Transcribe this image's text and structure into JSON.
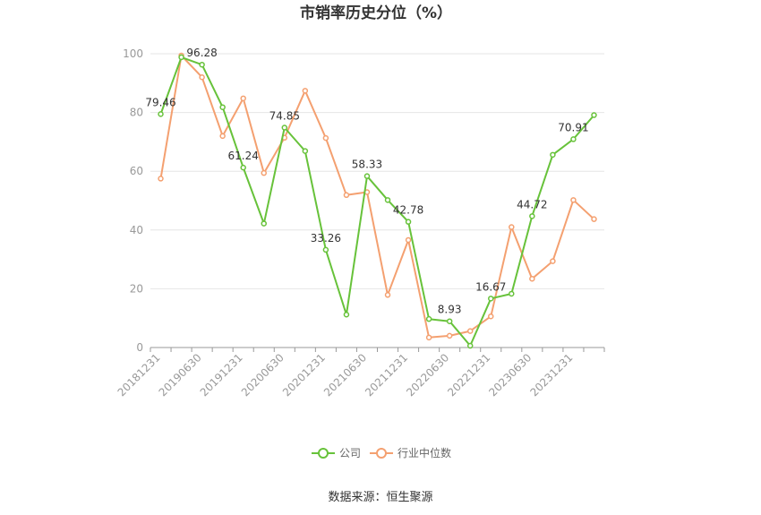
{
  "chart_data": {
    "type": "line",
    "title": "市销率历史分位（%）",
    "ylim": [
      0,
      100
    ],
    "yticks": [
      0,
      20,
      40,
      60,
      80,
      100
    ],
    "x_tick_labels": [
      "20181231",
      "20190630",
      "20191231",
      "20200630",
      "20201231",
      "20210630",
      "20211231",
      "20220630",
      "20221231",
      "20230630",
      "20231231"
    ],
    "points_count": 22,
    "grid": true,
    "legend_position": "bottom",
    "colors": {
      "company": "#67c23a",
      "industry": "#f4a070"
    },
    "series": [
      {
        "name": "公司",
        "key": "company",
        "values": [
          79.46,
          98.8,
          96.28,
          81.8,
          61.24,
          42.2,
          74.85,
          66.9,
          33.26,
          11.2,
          58.33,
          50.2,
          42.78,
          9.7,
          8.93,
          0.6,
          16.67,
          18.3,
          44.72,
          65.6,
          70.91,
          79.1
        ],
        "labels": [
          {
            "index": 0,
            "text": "79.46"
          },
          {
            "index": 2,
            "text": "96.28"
          },
          {
            "index": 4,
            "text": "61.24"
          },
          {
            "index": 6,
            "text": "74.85"
          },
          {
            "index": 8,
            "text": "33.26"
          },
          {
            "index": 10,
            "text": "58.33"
          },
          {
            "index": 12,
            "text": "42.78"
          },
          {
            "index": 14,
            "text": "8.93"
          },
          {
            "index": 16,
            "text": "16.67"
          },
          {
            "index": 18,
            "text": "44.72"
          },
          {
            "index": 20,
            "text": "70.91"
          }
        ]
      },
      {
        "name": "行业中位数",
        "key": "industry",
        "values": [
          57.5,
          99.4,
          92.0,
          72.0,
          84.8,
          59.4,
          71.4,
          87.4,
          71.3,
          51.9,
          52.9,
          17.9,
          36.6,
          3.4,
          4.0,
          5.6,
          10.6,
          41.0,
          23.4,
          29.4,
          50.2,
          43.7
        ],
        "labels": []
      }
    ]
  },
  "source": "数据来源：恒生聚源"
}
